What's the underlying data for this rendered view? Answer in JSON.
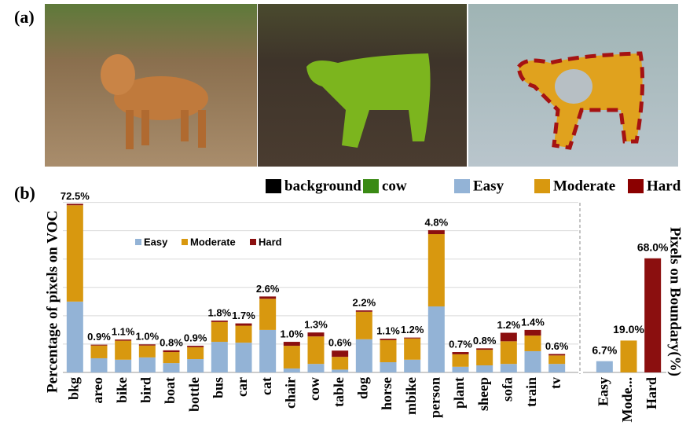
{
  "panel_a": {
    "label": "(a)",
    "legend": [
      {
        "name": "background",
        "color": "#000000"
      },
      {
        "name": "cow",
        "color": "#3a8a14"
      },
      {
        "name": "Easy",
        "color": "#93b3d6"
      },
      {
        "name": "Moderate",
        "color": "#d8980f"
      },
      {
        "name": "Hard",
        "color": "#8b0000"
      }
    ]
  },
  "panel_b_label": "(b)",
  "chart_data": [
    {
      "type": "stacked_bar",
      "ylabel": "Percentage of pixels on VOC",
      "categories": [
        "bkg",
        "areo",
        "bike",
        "bird",
        "boat",
        "bottle",
        "bus",
        "car",
        "cat",
        "chair",
        "cow",
        "table",
        "dog",
        "horse",
        "mbike",
        "person",
        "plant",
        "sheep",
        "sofa",
        "train",
        "tv"
      ],
      "series": [
        {
          "name": "Easy",
          "color": "#93b3d6",
          "values": [
            2.5,
            0.5,
            0.45,
            0.53,
            0.33,
            0.47,
            1.08,
            1.05,
            1.5,
            0.14,
            0.3,
            0.1,
            1.17,
            0.36,
            0.45,
            2.33,
            0.2,
            0.25,
            0.3,
            0.75,
            0.3
          ]
        },
        {
          "name": "Moderate",
          "color": "#d8980f",
          "values": [
            3.4,
            0.45,
            0.67,
            0.42,
            0.39,
            0.42,
            0.7,
            0.6,
            1.1,
            0.8,
            0.97,
            0.45,
            0.97,
            0.78,
            0.75,
            2.55,
            0.44,
            0.55,
            0.8,
            0.55,
            0.3
          ]
        },
        {
          "name": "Hard",
          "color": "#8b0f0f",
          "values": [
            0.05,
            0.03,
            0.04,
            0.04,
            0.06,
            0.05,
            0.05,
            0.08,
            0.08,
            0.14,
            0.14,
            0.22,
            0.05,
            0.05,
            0.03,
            0.14,
            0.08,
            0.05,
            0.3,
            0.2,
            0.05
          ]
        }
      ],
      "pixel_share": [
        72.5,
        0.9,
        1.1,
        1.0,
        0.8,
        0.9,
        1.8,
        1.7,
        2.6,
        1.0,
        1.3,
        0.6,
        2.2,
        1.1,
        1.2,
        4.8,
        0.7,
        0.8,
        1.2,
        1.4,
        0.6
      ],
      "pixel_share_labels": [
        "72.5%",
        "0.9%",
        "1.1%",
        "1.0%",
        "0.8%",
        "0.9%",
        "1.8%",
        "1.7%",
        "2.6%",
        "1.0%",
        "1.3%",
        "0.6%",
        "2.2%",
        "1.1%",
        "1.2%",
        "4.8%",
        "0.7%",
        "0.8%",
        "1.2%",
        "1.4%",
        "0.6%"
      ],
      "ylim": [
        0,
        6.1
      ],
      "yticks": [
        1,
        2,
        3,
        4,
        5,
        6
      ],
      "grid": true
    },
    {
      "type": "bar",
      "ylabel": "Pixels on Boundary(%)",
      "categories": [
        "Easy",
        "Mode...",
        "Hard"
      ],
      "values": [
        6.7,
        19.0,
        68.0
      ],
      "value_labels": [
        "6.7%",
        "19.0%",
        "68.0%"
      ],
      "colors": [
        "#93b3d6",
        "#d8980f",
        "#8b0f0f"
      ],
      "ylim": [
        0,
        103
      ]
    }
  ]
}
